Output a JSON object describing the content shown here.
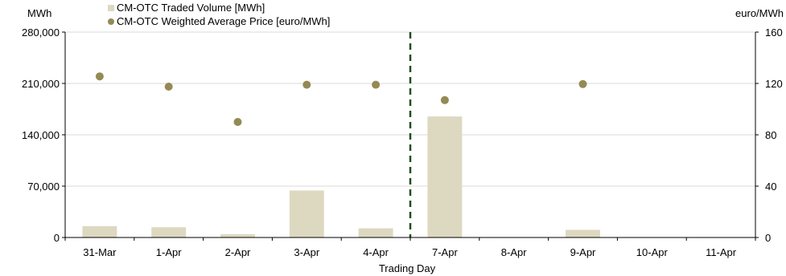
{
  "chart_data": {
    "type": "bar",
    "categories": [
      "31-Mar",
      "1-Apr",
      "2-Apr",
      "3-Apr",
      "4-Apr",
      "7-Apr",
      "8-Apr",
      "9-Apr",
      "10-Apr",
      "11-Apr"
    ],
    "series": [
      {
        "name": "CM-OTC Traded Volume [MWh]",
        "type": "bar",
        "axis": "left",
        "color": "#ddd8c0",
        "values": [
          15500,
          14000,
          4500,
          64000,
          12500,
          165000,
          0,
          10500,
          0,
          0
        ]
      },
      {
        "name": "CM-OTC Weighted Average Price [euro/MWh]",
        "type": "scatter",
        "axis": "right",
        "color": "#948a54",
        "values": [
          125.5,
          117.5,
          90,
          119,
          119,
          107,
          null,
          119.5,
          null,
          null
        ]
      }
    ],
    "xlabel": "Trading Day",
    "ylabel_left": "MWh",
    "ylabel_right": "euro/MWh",
    "ylim_left": [
      0,
      280000
    ],
    "ylim_right": [
      0,
      160
    ],
    "yticks_left": [
      "0",
      "70,000",
      "140,000",
      "210,000",
      "280,000"
    ],
    "yticks_right": [
      "0",
      "40",
      "80",
      "120",
      "160"
    ],
    "divider": {
      "after_category": "4-Apr",
      "style": "dashed",
      "color": "#1f4e1f"
    },
    "grid": true,
    "legend_position": "top-left",
    "gridline_color": "#d9d9d9"
  }
}
